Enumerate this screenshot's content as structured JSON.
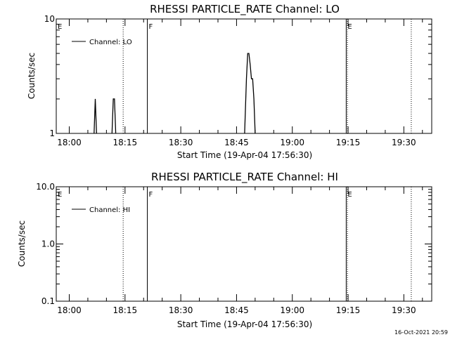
{
  "chart_data": [
    {
      "type": "line",
      "title": "RHESSI PARTICLE_RATE Channel: LO",
      "xlabel": "Start Time (19-Apr-04 17:56:30)",
      "ylabel": "Counts/sec",
      "y_scale": "log",
      "ylim": [
        1,
        10
      ],
      "y_ticks": [
        {
          "v": 1,
          "label": "1"
        },
        {
          "v": 10,
          "label": "10"
        }
      ],
      "xlim": [
        "17:56:30",
        "19:37:30"
      ],
      "x_ticks": [
        "18:00",
        "18:15",
        "18:30",
        "18:45",
        "19:00",
        "19:15",
        "19:30"
      ],
      "legend": {
        "label": "Channel: LO",
        "position": "top-left"
      },
      "markers": [
        {
          "time": "17:56:30",
          "label": "E",
          "style": "solid"
        },
        {
          "time": "18:14:30",
          "label": "",
          "style": "dotted"
        },
        {
          "time": "18:21:00",
          "label": "F",
          "style": "solid"
        },
        {
          "time": "19:14:30",
          "label": "E",
          "style": "solid"
        },
        {
          "time": "19:14:50",
          "label": "",
          "style": "dotted"
        },
        {
          "time": "19:32:00",
          "label": "",
          "style": "dotted"
        }
      ],
      "series": [
        {
          "name": "Channel: LO",
          "segments": [
            {
              "x": [
                "18:06:40",
                "18:07:00",
                "18:07:20"
              ],
              "y": [
                1,
                2,
                1
              ]
            },
            {
              "x": [
                "18:11:30",
                "18:11:50",
                "18:12:10",
                "18:12:30"
              ],
              "y": [
                1,
                2,
                2,
                1
              ]
            },
            {
              "x": [
                "18:47:10",
                "18:47:40",
                "18:48:00",
                "18:48:20",
                "18:48:40",
                "18:49:00",
                "18:49:20",
                "18:49:40",
                "18:50:00"
              ],
              "y": [
                1,
                3,
                5,
                5,
                4,
                3,
                3,
                2,
                1
              ]
            }
          ]
        }
      ]
    },
    {
      "type": "line",
      "title": "RHESSI PARTICLE_RATE Channel: HI",
      "xlabel": "Start Time (19-Apr-04 17:56:30)",
      "ylabel": "Counts/sec",
      "y_scale": "log",
      "ylim": [
        0.1,
        10
      ],
      "y_ticks": [
        {
          "v": 0.1,
          "label": "0.1"
        },
        {
          "v": 1,
          "label": "1.0"
        },
        {
          "v": 10,
          "label": "10.0"
        }
      ],
      "xlim": [
        "17:56:30",
        "19:37:30"
      ],
      "x_ticks": [
        "18:00",
        "18:15",
        "18:30",
        "18:45",
        "19:00",
        "19:15",
        "19:30"
      ],
      "legend": {
        "label": "Channel: HI",
        "position": "top-left"
      },
      "markers": [
        {
          "time": "17:56:30",
          "label": "E",
          "style": "solid"
        },
        {
          "time": "18:14:30",
          "label": "",
          "style": "dotted"
        },
        {
          "time": "18:21:00",
          "label": "F",
          "style": "solid"
        },
        {
          "time": "19:14:30",
          "label": "E",
          "style": "solid"
        },
        {
          "time": "19:14:50",
          "label": "",
          "style": "dotted"
        },
        {
          "time": "19:32:00",
          "label": "",
          "style": "dotted"
        }
      ],
      "series": [
        {
          "name": "Channel: HI",
          "segments": []
        }
      ]
    }
  ],
  "footer": {
    "timestamp": "16-Oct-2021 20:59"
  }
}
